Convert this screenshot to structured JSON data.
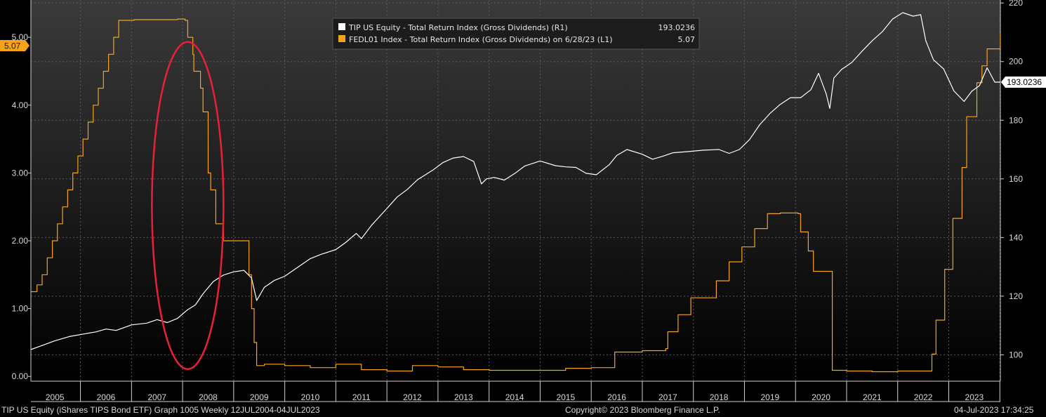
{
  "chart_data": {
    "type": "line",
    "x_unit": "year",
    "x_range": [
      2004.53,
      2023.51
    ],
    "series": [
      {
        "name": "TIP US Equity - Total Return Index (Gross Dividends) (R1)",
        "axis": "right",
        "color": "#ffffff",
        "last_value": "193.0236",
        "x": [
          2004.53,
          2004.8,
          2005.0,
          2005.3,
          2005.6,
          2005.8,
          2006.0,
          2006.2,
          2006.5,
          2006.8,
          2007.0,
          2007.2,
          2007.4,
          2007.6,
          2007.75,
          2007.9,
          2008.1,
          2008.3,
          2008.5,
          2008.7,
          2008.85,
          2008.95,
          2009.1,
          2009.3,
          2009.5,
          2009.7,
          2010.0,
          2010.2,
          2010.5,
          2010.7,
          2010.9,
          2011.0,
          2011.2,
          2011.5,
          2011.7,
          2011.9,
          2012.1,
          2012.4,
          2012.6,
          2012.8,
          2013.0,
          2013.2,
          2013.35,
          2013.45,
          2013.6,
          2013.8,
          2014.0,
          2014.2,
          2014.5,
          2014.8,
          2015.0,
          2015.2,
          2015.4,
          2015.6,
          2015.85,
          2016.0,
          2016.2,
          2016.5,
          2016.7,
          2016.9,
          2017.1,
          2017.4,
          2017.7,
          2018.0,
          2018.2,
          2018.4,
          2018.6,
          2018.8,
          2019.0,
          2019.2,
          2019.4,
          2019.6,
          2019.8,
          2019.95,
          2020.1,
          2020.17,
          2020.25,
          2020.4,
          2020.6,
          2020.8,
          2021.0,
          2021.2,
          2021.4,
          2021.6,
          2021.8,
          2021.95,
          2022.05,
          2022.2,
          2022.4,
          2022.6,
          2022.8,
          2022.95,
          2023.1,
          2023.25,
          2023.4,
          2023.51
        ],
        "y": [
          101.8,
          103.5,
          104.8,
          106.3,
          107.2,
          107.8,
          108.8,
          108.3,
          110.2,
          110.8,
          112.0,
          111.0,
          112.4,
          115.4,
          117.0,
          120.8,
          125.0,
          127.2,
          128.3,
          128.8,
          126.2,
          118.5,
          123.0,
          125.4,
          126.8,
          129.2,
          132.8,
          134.2,
          135.9,
          138.4,
          141.4,
          139.6,
          144.2,
          149.9,
          153.8,
          156.4,
          159.7,
          163.0,
          165.6,
          167.1,
          167.6,
          165.9,
          158.3,
          160.0,
          160.5,
          159.6,
          161.8,
          164.4,
          166.1,
          164.5,
          164.1,
          163.9,
          161.9,
          161.4,
          164.8,
          168.0,
          170.0,
          168.4,
          166.7,
          167.7,
          168.9,
          169.3,
          169.8,
          170.0,
          168.7,
          170.0,
          173.4,
          178.5,
          182.3,
          185.4,
          187.7,
          187.7,
          190.4,
          196.0,
          189.0,
          184.0,
          194.4,
          197.3,
          199.7,
          203.5,
          207.1,
          210.2,
          214.5,
          216.7,
          215.5,
          216.0,
          207.1,
          200.6,
          197.5,
          190.0,
          186.4,
          189.9,
          191.8,
          197.9,
          193.0,
          193.0
        ]
      },
      {
        "name": "FEDL01 Index - Total Return Index (Gross Dividends) on 6/28/23 (L1)",
        "axis": "left",
        "color": "#f7a21b",
        "last_value": "5.07",
        "x": [
          2004.53,
          2004.65,
          2004.75,
          2004.85,
          2004.95,
          2005.05,
          2005.15,
          2005.25,
          2005.35,
          2005.45,
          2005.55,
          2005.65,
          2005.75,
          2005.85,
          2005.95,
          2006.05,
          2006.15,
          2006.25,
          2006.35,
          2006.45,
          2006.55,
          2007.0,
          2007.4,
          2007.55,
          2007.6,
          2007.7,
          2007.72,
          2007.85,
          2007.9,
          2008.0,
          2008.05,
          2008.15,
          2008.3,
          2008.4,
          2008.5,
          2008.6,
          2008.7,
          2008.8,
          2008.85,
          2008.9,
          2008.95,
          2009.1,
          2009.5,
          2010.0,
          2010.5,
          2011.0,
          2011.5,
          2012.0,
          2012.5,
          2013.0,
          2013.5,
          2014.0,
          2014.5,
          2015.0,
          2015.5,
          2015.94,
          2015.96,
          2016.5,
          2016.96,
          2017.0,
          2017.2,
          2017.45,
          2017.7,
          2017.95,
          2018.2,
          2018.45,
          2018.7,
          2018.95,
          2019.2,
          2019.55,
          2019.6,
          2019.75,
          2019.85,
          2019.95,
          2020.15,
          2020.22,
          2020.5,
          2021.0,
          2021.5,
          2022.0,
          2022.17,
          2022.25,
          2022.35,
          2022.42,
          2022.5,
          2022.58,
          2022.68,
          2022.76,
          2022.85,
          2022.95,
          2023.05,
          2023.15,
          2023.25,
          2023.35,
          2023.51
        ],
        "y": [
          1.25,
          1.35,
          1.5,
          1.75,
          2.0,
          2.25,
          2.5,
          2.75,
          3.0,
          3.25,
          3.5,
          3.75,
          4.0,
          4.25,
          4.5,
          4.75,
          5.0,
          5.25,
          5.25,
          5.25,
          5.26,
          5.26,
          5.27,
          5.25,
          5.0,
          4.75,
          4.5,
          4.25,
          3.9,
          3.0,
          2.75,
          2.25,
          2.0,
          2.0,
          2.0,
          2.0,
          2.0,
          1.5,
          1.0,
          0.5,
          0.16,
          0.18,
          0.16,
          0.13,
          0.18,
          0.1,
          0.08,
          0.16,
          0.14,
          0.1,
          0.09,
          0.09,
          0.09,
          0.12,
          0.13,
          0.13,
          0.36,
          0.38,
          0.41,
          0.66,
          0.91,
          1.16,
          1.16,
          1.41,
          1.69,
          1.91,
          2.18,
          2.4,
          2.41,
          2.4,
          2.13,
          1.85,
          1.55,
          1.55,
          1.55,
          0.09,
          0.08,
          0.07,
          0.08,
          0.08,
          0.33,
          0.83,
          0.83,
          1.58,
          1.58,
          2.33,
          2.33,
          3.08,
          3.83,
          3.83,
          4.33,
          4.58,
          4.83,
          4.83,
          5.07
        ]
      }
    ],
    "y_left": {
      "ylim": [
        -0.07,
        5.55
      ],
      "ticks": [
        "0.00",
        "1.00",
        "2.00",
        "3.00",
        "4.00",
        "5.00"
      ]
    },
    "y_right": {
      "ylim": [
        91,
        221
      ],
      "ticks": [
        "100",
        "120",
        "140",
        "160",
        "180",
        "200",
        "220"
      ]
    },
    "x_ticks": [
      "2005",
      "2006",
      "2007",
      "2008",
      "2009",
      "2010",
      "2011",
      "2012",
      "2013",
      "2014",
      "2015",
      "2016",
      "2017",
      "2018",
      "2019",
      "2020",
      "2021",
      "2022",
      "2023"
    ],
    "grid": true,
    "legend_placement": "top-center",
    "annotation": {
      "shape": "ellipse",
      "color": "#e8203a",
      "x_center": 2007.6,
      "y_center_left": 2.52
    }
  },
  "legend": {
    "entries": [
      {
        "label": "TIP US Equity - Total Return Index (Gross Dividends) (R1)",
        "value": "193.0236",
        "color": "#ffffff"
      },
      {
        "label": "FEDL01 Index - Total Return Index (Gross Dividends) on 6/28/23 (L1)",
        "value": "5.07",
        "color": "#f7a21b"
      }
    ]
  },
  "badges": {
    "left_last": "5.07",
    "right_last": "193.0236"
  },
  "footer": {
    "left": "TIP US Equity (iShares TIPS Bond ETF) Graph 1005  Weekly 12JUL2004-04JUL2023",
    "center": "Copyright© 2023 Bloomberg Finance L.P.",
    "right": "04-Jul-2023 17:34:25"
  },
  "colors": {
    "background": "#000000",
    "grid": "#5a5a5a",
    "axis": "#d0d0d0",
    "orange": "#f7a21b",
    "white": "#ffffff",
    "annotation": "#e8203a"
  }
}
